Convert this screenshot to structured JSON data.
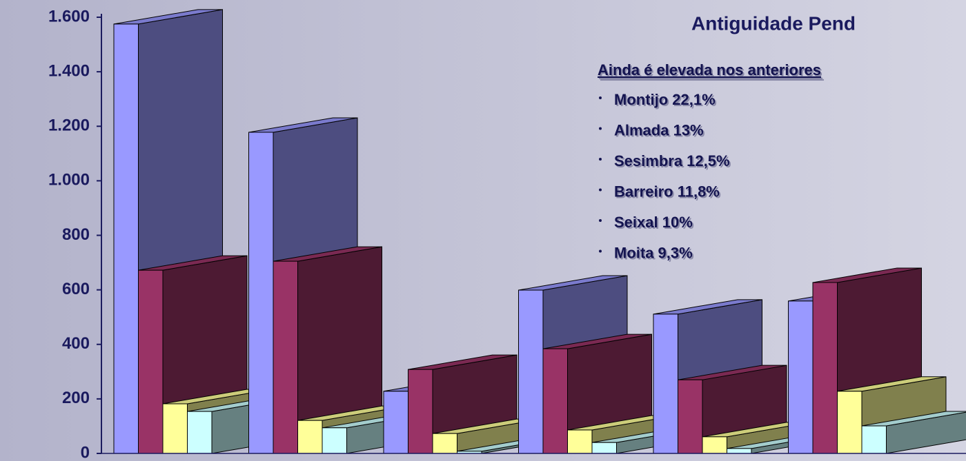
{
  "chart_data": {
    "type": "bar3d",
    "title": "Antiguidade Pend",
    "annotation_heading": "Ainda é elevada nos anteriores",
    "annotations": [
      "Montijo 22,1%",
      "Almada 13%",
      "Sesimbra 12,5%",
      "Barreiro 11,8%",
      "Seixal 10%",
      "Moita 9,3%"
    ],
    "categories": [
      null,
      null,
      null,
      null,
      null,
      null
    ],
    "series": [
      {
        "color": "#9999ff",
        "values": [
          1575,
          1178,
          228,
          599,
          511,
          559
        ]
      },
      {
        "color": "#993366",
        "values": [
          672,
          705,
          308,
          384,
          270,
          627
        ]
      },
      {
        "color": "#ffff99",
        "values": [
          182,
          121,
          73,
          86,
          61,
          228
        ]
      },
      {
        "color": "#ccffff",
        "values": [
          154,
          94,
          8,
          40,
          18,
          101
        ]
      }
    ],
    "ylim": [
      0,
      1600
    ],
    "yticks": [
      {
        "value": 0,
        "label": "0"
      },
      {
        "value": 200,
        "label": "200"
      },
      {
        "value": 400,
        "label": "400"
      },
      {
        "value": 600,
        "label": "600"
      },
      {
        "value": 800,
        "label": "800"
      },
      {
        "value": 1000,
        "label": "1.000"
      },
      {
        "value": 1200,
        "label": "1.200"
      },
      {
        "value": 1400,
        "label": "1.400"
      },
      {
        "value": 1600,
        "label": "1.600"
      }
    ]
  }
}
